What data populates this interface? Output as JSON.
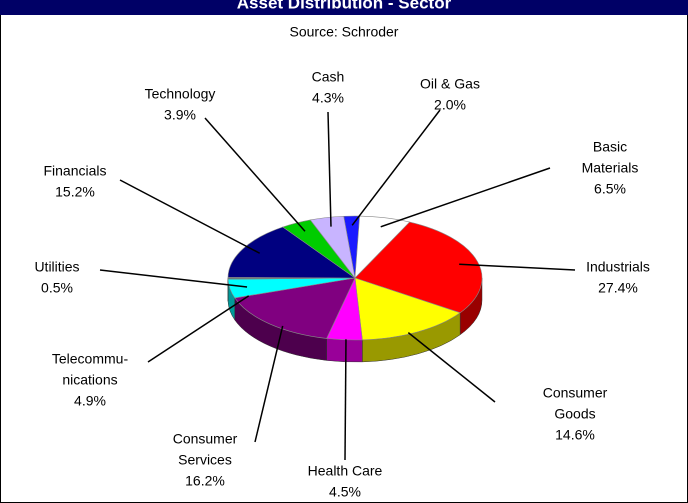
{
  "chart_data": {
    "type": "pie",
    "title": "Asset Distribution - Sector",
    "subtitle": "Source: Schroder",
    "categories": [
      [
        "Oil & Gas"
      ],
      [
        "Basic",
        "Materials"
      ],
      [
        "Industrials"
      ],
      [
        "Consumer",
        "Goods"
      ],
      [
        "Health Care"
      ],
      [
        "Consumer",
        "Services"
      ],
      [
        "Telecommu-",
        "nications"
      ],
      [
        "Utilities"
      ],
      [
        "Financials"
      ],
      [
        "Technology"
      ],
      [
        "Cash"
      ]
    ],
    "values": [
      2.0,
      6.5,
      27.4,
      14.6,
      4.5,
      16.2,
      4.9,
      0.5,
      15.2,
      3.9,
      4.3
    ],
    "value_labels": [
      "2.0%",
      "6.5%",
      "27.4%",
      "14.6%",
      "4.5%",
      "16.2%",
      "4.9%",
      "0.5%",
      "15.2%",
      "3.9%",
      "4.3%"
    ],
    "colors": [
      "#1a1aff",
      "#ffffff",
      "#ff0000",
      "#ffff00",
      "#ff00ff",
      "#800080",
      "#00ffff",
      "#6a7a7a",
      "#000080",
      "#00cc00",
      "#c8b4ff"
    ]
  }
}
